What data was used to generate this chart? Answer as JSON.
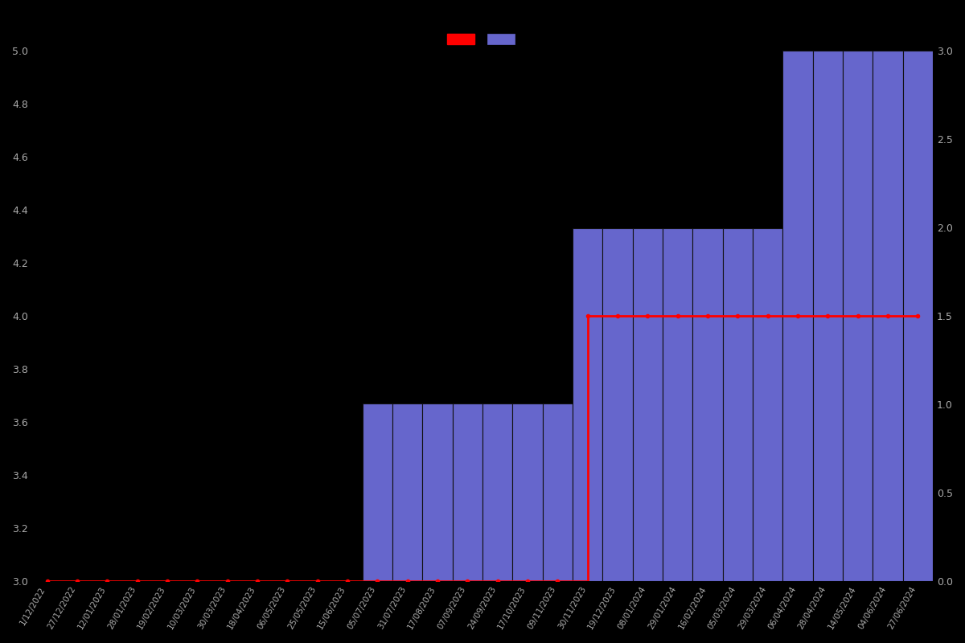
{
  "background_color": "#000000",
  "bar_color": "#6666cc",
  "bar_edgecolor": "#111111",
  "line_color": "#ff0000",
  "text_color": "#aaaaaa",
  "left_ylim": [
    3.0,
    5.0
  ],
  "right_ylim": [
    0,
    3.0
  ],
  "left_yticks": [
    3.0,
    3.2,
    3.4,
    3.6,
    3.8,
    4.0,
    4.2,
    4.4,
    4.6,
    4.8,
    5.0
  ],
  "right_yticks": [
    0,
    0.5,
    1.0,
    1.5,
    2.0,
    2.5,
    3.0
  ],
  "dates": [
    "1/12/2022",
    "27/12/2022",
    "12/01/2023",
    "28/01/2023",
    "19/02/2023",
    "10/03/2023",
    "30/03/2023",
    "18/04/2023",
    "06/05/2023",
    "25/05/2023",
    "15/06/2023",
    "05/07/2023",
    "31/07/2023",
    "17/08/2023",
    "07/09/2023",
    "24/09/2023",
    "17/10/2023",
    "09/11/2023",
    "30/11/2023",
    "19/12/2023",
    "08/01/2024",
    "29/01/2024",
    "16/02/2024",
    "05/03/2024",
    "29/03/2024",
    "06/04/2024",
    "28/04/2024",
    "14/05/2024",
    "04/06/2024",
    "27/06/2024"
  ],
  "bar_values": [
    0,
    0,
    0,
    0,
    0,
    0,
    0,
    0,
    0,
    0,
    0,
    3.67,
    3.67,
    3.67,
    3.67,
    3.67,
    3.67,
    3.67,
    4.33,
    4.33,
    4.33,
    4.33,
    4.33,
    4.33,
    4.33,
    5.0,
    5.0,
    5.0,
    5.0,
    5.0
  ],
  "line_values_left": [
    3.0,
    3.0,
    3.0,
    3.0,
    3.0,
    3.0,
    3.0,
    3.0,
    3.0,
    3.0,
    3.0,
    3.0,
    3.0,
    3.0,
    3.0,
    3.0,
    3.0,
    3.0,
    4.0,
    4.0,
    4.0,
    4.0,
    4.0,
    4.0,
    4.0,
    4.0,
    4.0,
    4.0,
    4.0,
    4.0
  ],
  "figsize": [
    12.0,
    8.0
  ],
  "dpi": 100
}
